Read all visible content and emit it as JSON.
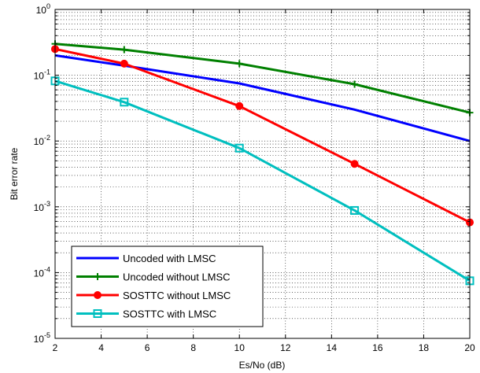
{
  "chart_data": {
    "type": "line",
    "title": "",
    "xlabel": "Es/No (dB)",
    "ylabel": "Bit error rate",
    "yscale": "log",
    "xlim": [
      2,
      20
    ],
    "ylim": [
      1e-05,
      1
    ],
    "grid": true,
    "legend_position": "bottom-left",
    "x_ticks": [
      "2",
      "4",
      "6",
      "8",
      "10",
      "12",
      "14",
      "16",
      "18",
      "20"
    ],
    "y_tick_bases": [
      "10",
      "10",
      "10",
      "10",
      "10",
      "10"
    ],
    "y_tick_exponents": [
      "-5",
      "-4",
      "-3",
      "-2",
      "-1",
      "0"
    ],
    "series": [
      {
        "name": "Uncoded with LMSC",
        "color": "#0000ff",
        "marker": "none",
        "x": [
          2,
          5,
          10,
          15,
          20
        ],
        "y": [
          0.2,
          0.14,
          0.075,
          0.03,
          0.01
        ]
      },
      {
        "name": "Uncoded without LMSC",
        "color": "#008000",
        "marker": "plus",
        "x": [
          2,
          5,
          10,
          15,
          20
        ],
        "y": [
          0.3,
          0.245,
          0.15,
          0.073,
          0.027
        ]
      },
      {
        "name": "SOSTTC without LMSC",
        "color": "#ff0000",
        "marker": "circle",
        "x": [
          2,
          5,
          10,
          15,
          20
        ],
        "y": [
          0.25,
          0.15,
          0.034,
          0.0045,
          0.00058
        ]
      },
      {
        "name": "SOSTTC with LMSC",
        "color": "#00bfbf",
        "marker": "square",
        "x": [
          2,
          5,
          10,
          15,
          20
        ],
        "y": [
          0.082,
          0.039,
          0.0078,
          0.00088,
          7.5e-05
        ]
      }
    ]
  }
}
